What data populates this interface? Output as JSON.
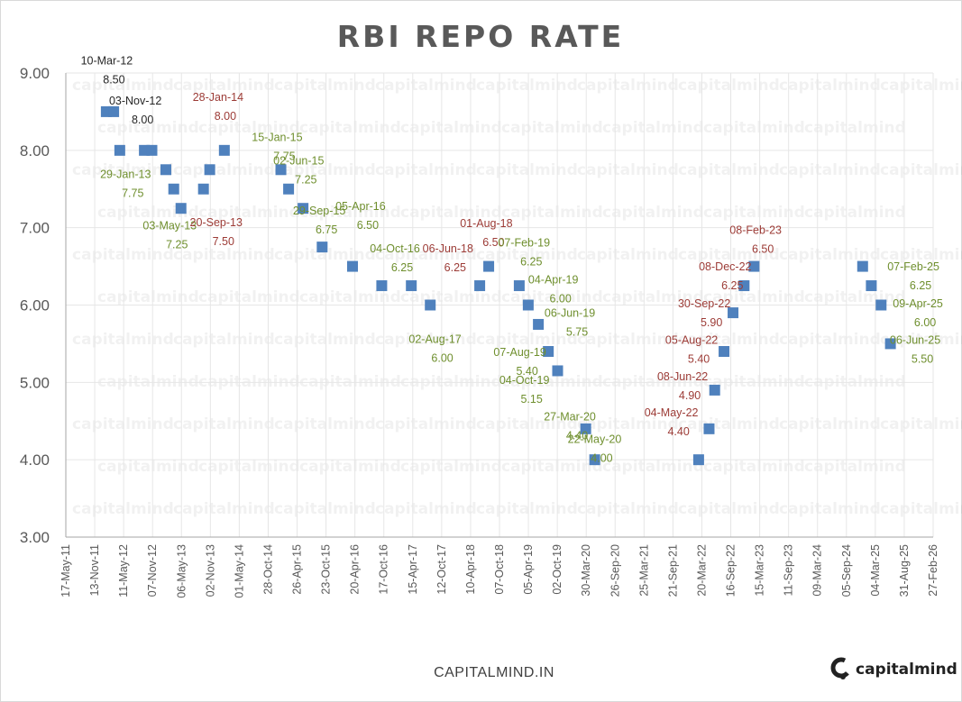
{
  "chart_data": {
    "type": "scatter",
    "title": "RBI REPO RATE",
    "ylim": [
      3.0,
      9.0
    ],
    "y_ticks": [
      "3.00",
      "4.00",
      "5.00",
      "6.00",
      "7.00",
      "8.00",
      "9.00"
    ],
    "xlim": [
      "2011-05-17",
      "2026-02-27"
    ],
    "x_ticks": [
      "17-May-11",
      "13-Nov-11",
      "11-May-12",
      "07-Nov-12",
      "06-May-13",
      "02-Nov-13",
      "01-May-14",
      "28-Oct-14",
      "26-Apr-15",
      "23-Oct-15",
      "20-Apr-16",
      "17-Oct-16",
      "15-Apr-17",
      "12-Oct-17",
      "10-Apr-18",
      "07-Oct-18",
      "05-Apr-19",
      "02-Oct-19",
      "30-Mar-20",
      "26-Sep-20",
      "25-Mar-21",
      "21-Sep-21",
      "20-Mar-22",
      "16-Sep-22",
      "15-Mar-23",
      "11-Sep-23",
      "09-Mar-24",
      "05-Sep-24",
      "04-Mar-25",
      "31-Aug-25",
      "27-Feb-26"
    ],
    "grid": true,
    "series": [
      {
        "points": [
          {
            "date": "2012-01-24",
            "y": 8.5
          },
          {
            "date": "2012-03-10",
            "y": 8.5
          },
          {
            "date": "2012-04-17",
            "y": 8.0
          },
          {
            "date": "2012-09-17",
            "y": 8.0
          },
          {
            "date": "2012-11-03",
            "y": 8.0
          },
          {
            "date": "2013-01-29",
            "y": 7.75
          },
          {
            "date": "2013-03-19",
            "y": 7.5
          },
          {
            "date": "2013-05-03",
            "y": 7.25
          },
          {
            "date": "2013-09-20",
            "y": 7.5
          },
          {
            "date": "2013-10-29",
            "y": 7.75
          },
          {
            "date": "2014-01-28",
            "y": 8.0
          },
          {
            "date": "2015-01-15",
            "y": 7.75
          },
          {
            "date": "2015-03-04",
            "y": 7.5
          },
          {
            "date": "2015-06-02",
            "y": 7.25
          },
          {
            "date": "2015-09-29",
            "y": 6.75
          },
          {
            "date": "2016-04-05",
            "y": 6.5
          },
          {
            "date": "2016-10-04",
            "y": 6.25
          },
          {
            "date": "2017-04-06",
            "y": 6.25
          },
          {
            "date": "2017-08-02",
            "y": 6.0
          },
          {
            "date": "2018-06-06",
            "y": 6.25
          },
          {
            "date": "2018-08-01",
            "y": 6.5
          },
          {
            "date": "2019-02-07",
            "y": 6.25
          },
          {
            "date": "2019-04-04",
            "y": 6.0
          },
          {
            "date": "2019-06-06",
            "y": 5.75
          },
          {
            "date": "2019-08-07",
            "y": 5.4
          },
          {
            "date": "2019-10-04",
            "y": 5.15
          },
          {
            "date": "2020-03-27",
            "y": 4.4
          },
          {
            "date": "2020-05-22",
            "y": 4.0
          },
          {
            "date": "2022-02-28",
            "y": 4.0
          },
          {
            "date": "2022-05-04",
            "y": 4.4
          },
          {
            "date": "2022-06-08",
            "y": 4.9
          },
          {
            "date": "2022-08-05",
            "y": 5.4
          },
          {
            "date": "2022-09-30",
            "y": 5.9
          },
          {
            "date": "2022-12-08",
            "y": 6.25
          },
          {
            "date": "2023-02-08",
            "y": 6.5
          },
          {
            "date": "2024-12-15",
            "y": 6.5
          },
          {
            "date": "2025-02-07",
            "y": 6.25
          },
          {
            "date": "2025-04-09",
            "y": 6.0
          },
          {
            "date": "2025-06-06",
            "y": 5.5
          }
        ]
      }
    ],
    "colors": {
      "marker": "#4f81bd",
      "cut_label": "#6f8f2e",
      "hike_label": "#9c3b36",
      "neutral_label": "#262626",
      "grid": "#e6e6e6",
      "axis": "#a6a6a6",
      "tick_text": "#595959"
    },
    "annotations": [
      {
        "date": "10-Mar-12",
        "value": "8.50",
        "color": "#262626",
        "date_anchor": "2012-01-27",
        "y_anchor": 9.11
      },
      {
        "date": "03-Nov-12",
        "value": "8.00",
        "color": "#262626",
        "date_anchor": "2012-07-23",
        "y_anchor": 8.59
      },
      {
        "date": "29-Jan-13",
        "value": "7.75",
        "color": "#6f8f2e",
        "date_anchor": "2012-05-23",
        "y_anchor": 7.64
      },
      {
        "date": "03-May-13",
        "value": "7.25",
        "color": "#6f8f2e",
        "date_anchor": "2013-02-22",
        "y_anchor": 6.98
      },
      {
        "date": "20-Sep-13",
        "value": "7.50",
        "color": "#9c3b36",
        "date_anchor": "2013-12-08",
        "y_anchor": 7.02
      },
      {
        "date": "28-Jan-14",
        "value": "8.00",
        "color": "#9c3b36",
        "date_anchor": "2013-12-20",
        "y_anchor": 8.64
      },
      {
        "date": "15-Jan-15",
        "value": "7.75",
        "color": "#6f8f2e",
        "date_anchor": "2014-12-23",
        "y_anchor": 8.12
      },
      {
        "date": "02-Jun-15",
        "value": "7.25",
        "color": "#6f8f2e",
        "date_anchor": "2015-05-06",
        "y_anchor": 7.82
      },
      {
        "date": "29-Sep-15",
        "value": "6.75",
        "color": "#6f8f2e",
        "date_anchor": "2015-09-11",
        "y_anchor": 7.17
      },
      {
        "date": "05-Apr-16",
        "value": "6.50",
        "color": "#6f8f2e",
        "date_anchor": "2016-05-25",
        "y_anchor": 7.23
      },
      {
        "date": "04-Oct-16",
        "value": "6.25",
        "color": "#6f8f2e",
        "date_anchor": "2016-12-25",
        "y_anchor": 6.68
      },
      {
        "date": "06-Jun-18",
        "value": "6.25",
        "color": "#9c3b36",
        "date_anchor": "2017-11-20",
        "y_anchor": 6.68
      },
      {
        "date": "02-Aug-17",
        "value": "6.00",
        "color": "#6f8f2e",
        "date_anchor": "2017-09-01",
        "y_anchor": 5.51
      },
      {
        "date": "01-Aug-18",
        "value": "6.50",
        "color": "#9c3b36",
        "date_anchor": "2018-07-17",
        "y_anchor": 7.01
      },
      {
        "date": "07-Feb-19",
        "value": "6.25",
        "color": "#6f8f2e",
        "date_anchor": "2019-03-09",
        "y_anchor": 6.76
      },
      {
        "date": "04-Apr-19",
        "value": "6.00",
        "color": "#6f8f2e",
        "date_anchor": "2019-09-07",
        "y_anchor": 6.28
      },
      {
        "date": "06-Jun-19",
        "value": "5.75",
        "color": "#6f8f2e",
        "date_anchor": "2019-12-19",
        "y_anchor": 5.85
      },
      {
        "date": "07-Aug-19",
        "value": "5.40",
        "color": "#6f8f2e",
        "date_anchor": "2019-02-11",
        "y_anchor": 5.34
      },
      {
        "date": "04-Oct-19",
        "value": "5.15",
        "color": "#6f8f2e",
        "date_anchor": "2019-03-11",
        "y_anchor": 4.98
      },
      {
        "date": "27-Mar-20",
        "value": "4.40",
        "color": "#6f8f2e",
        "date_anchor": "2019-12-19",
        "y_anchor": 4.51
      },
      {
        "date": "22-May-20",
        "value": "4.00",
        "color": "#6f8f2e",
        "date_anchor": "2020-05-21",
        "y_anchor": 4.22
      },
      {
        "date": "04-May-22",
        "value": "4.40",
        "color": "#9c3b36",
        "date_anchor": "2021-09-11",
        "y_anchor": 4.56
      },
      {
        "date": "08-Jun-22",
        "value": "4.90",
        "color": "#9c3b36",
        "date_anchor": "2021-11-20",
        "y_anchor": 5.03
      },
      {
        "date": "05-Aug-22",
        "value": "5.40",
        "color": "#9c3b36",
        "date_anchor": "2022-01-15",
        "y_anchor": 5.5
      },
      {
        "date": "30-Sep-22",
        "value": "5.90",
        "color": "#9c3b36",
        "date_anchor": "2022-04-04",
        "y_anchor": 5.97
      },
      {
        "date": "08-Dec-22",
        "value": "6.25",
        "color": "#9c3b36",
        "date_anchor": "2022-08-12",
        "y_anchor": 6.45
      },
      {
        "date": "08-Feb-23",
        "value": "6.50",
        "color": "#9c3b36",
        "date_anchor": "2023-02-18",
        "y_anchor": 6.92
      },
      {
        "date": "07-Feb-25",
        "value": "6.25",
        "color": "#6f8f2e",
        "date_anchor": "2025-10-27",
        "y_anchor": 6.45
      },
      {
        "date": "09-Apr-25",
        "value": "6.00",
        "color": "#6f8f2e",
        "date_anchor": "2025-11-24",
        "y_anchor": 5.97
      },
      {
        "date": "06-Jun-25",
        "value": "5.50",
        "color": "#6f8f2e",
        "date_anchor": "2025-11-07",
        "y_anchor": 5.5
      }
    ]
  },
  "watermark": {
    "text": "capitalmind"
  },
  "footer": {
    "source": "CAPITALMIND.IN",
    "brand": "capitalmind",
    "logo_icon": "capitalmind-c-logo-icon"
  }
}
